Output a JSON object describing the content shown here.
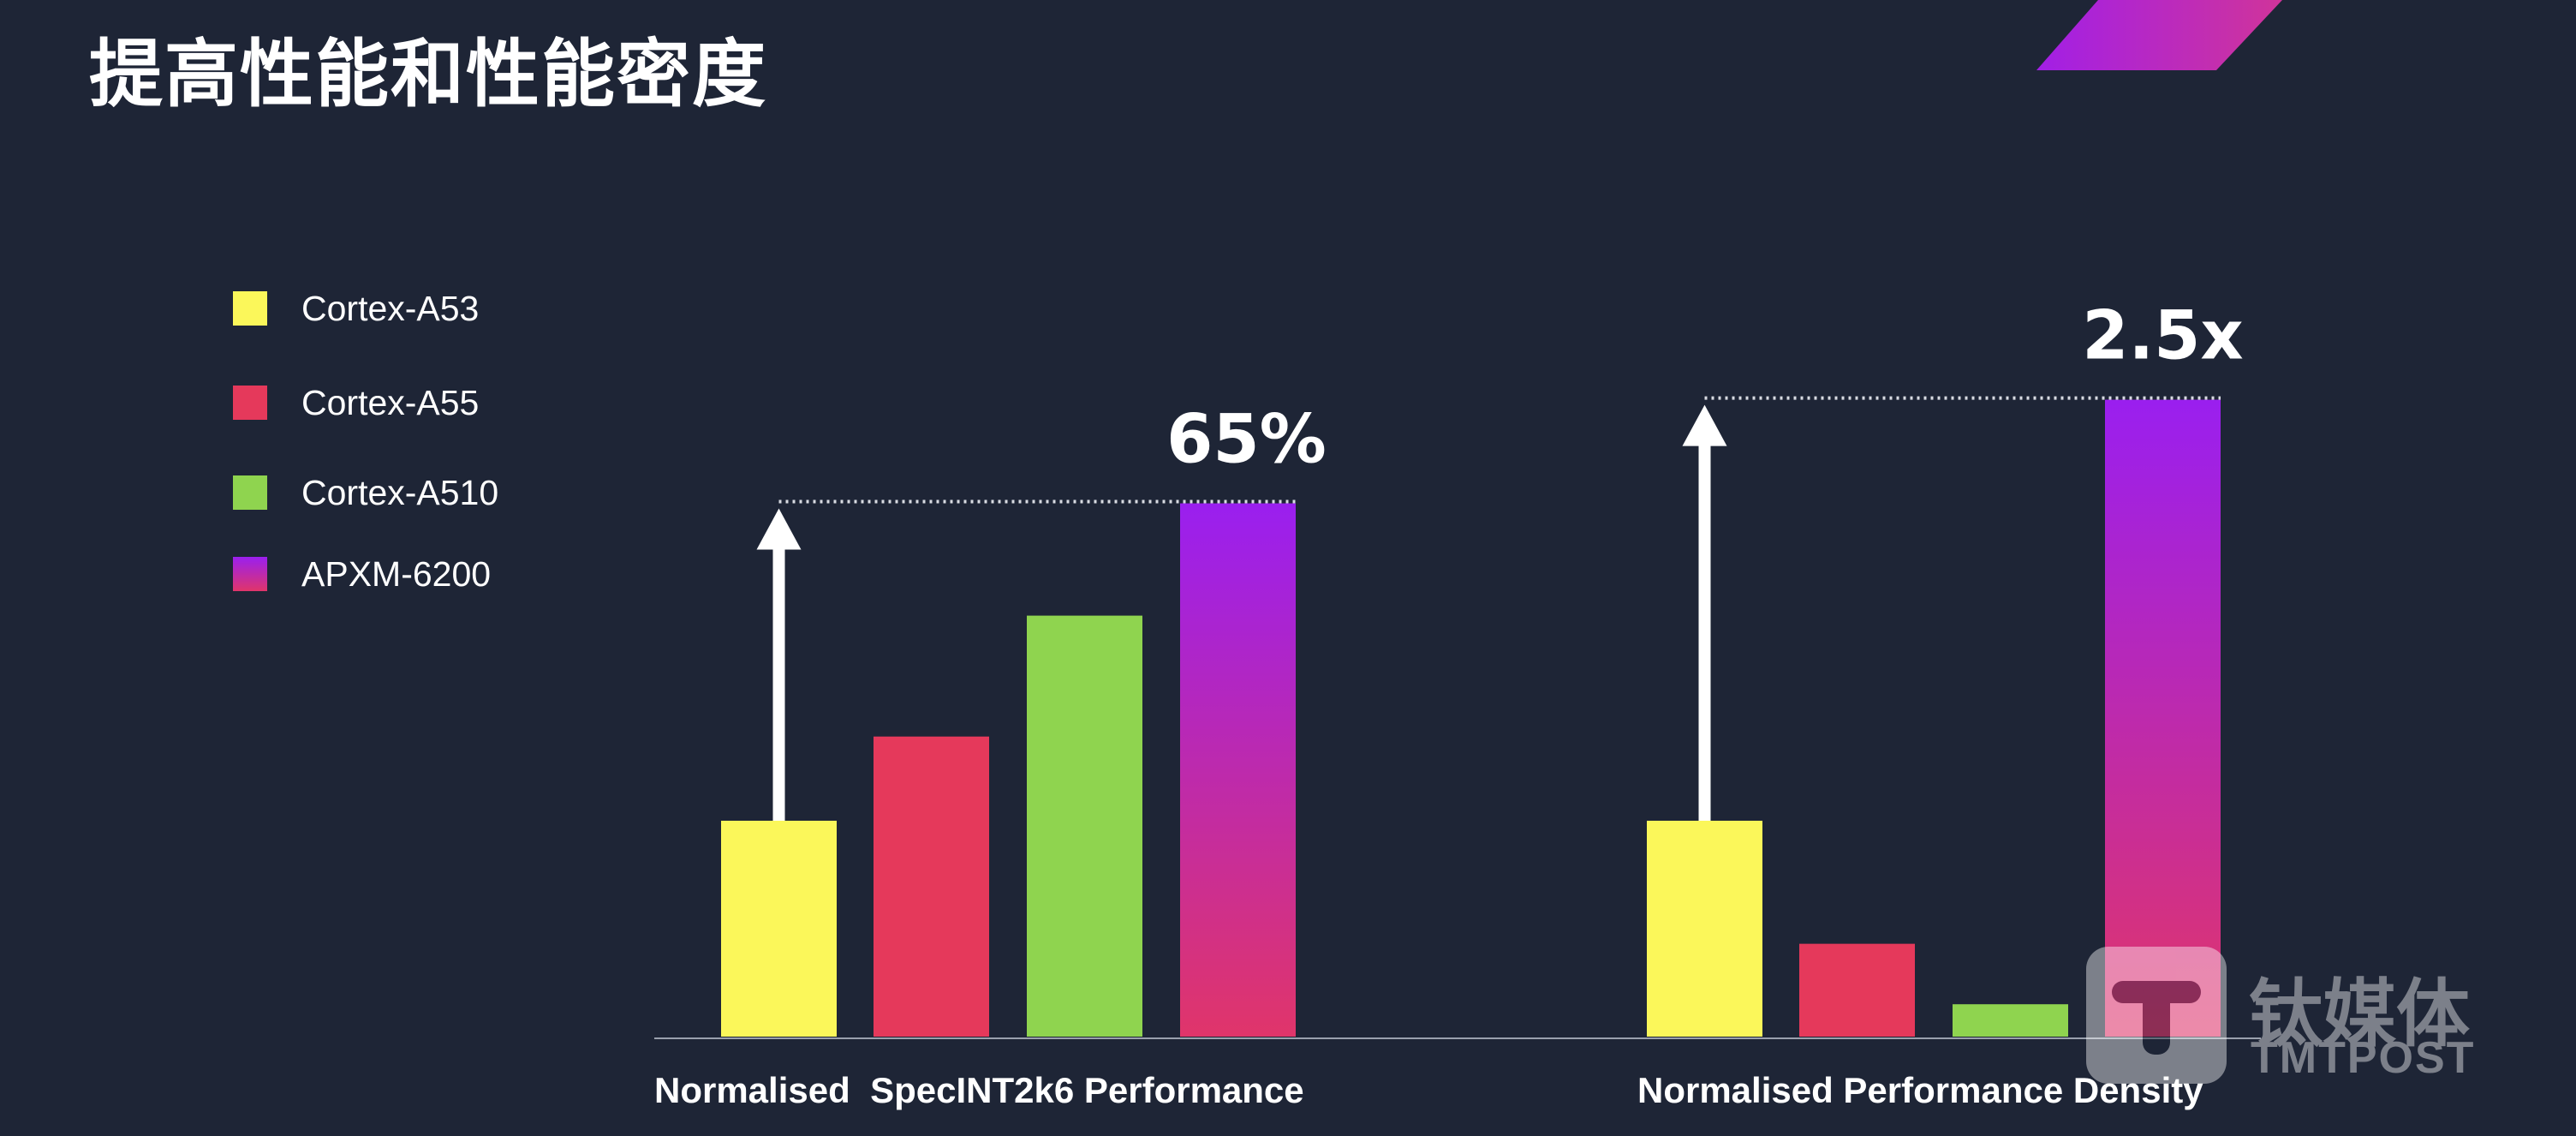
{
  "page": {
    "title": "提高性能和性能密度"
  },
  "legend": [
    {
      "label": "Cortex-A53",
      "color": "#fbf75a"
    },
    {
      "label": "Cortex-A55",
      "color": "#e5395b"
    },
    {
      "label": "Cortex-A510",
      "color": "#8fd44f"
    },
    {
      "label": "APXM-6200",
      "color_top": "#9a1fef",
      "color_bottom": "#e0356a"
    }
  ],
  "colors": {
    "background": "#1e2536",
    "axis": "#9aa0ad",
    "arrow": "#ffffff",
    "dotted_line": "#d8dbe2"
  },
  "chart_data": [
    {
      "type": "bar",
      "xlabel": "Normalised  SpecINT2k6 Performance",
      "series_labels": [
        "Cortex-A53",
        "Cortex-A55",
        "Cortex-A510",
        "APXM-6200"
      ],
      "values": [
        1.0,
        1.39,
        1.95,
        2.47
      ],
      "annotation": "65%",
      "y_axis_shown": false
    },
    {
      "type": "bar",
      "xlabel": "Normalised Performance Density",
      "series_labels": [
        "Cortex-A53",
        "Cortex-A55",
        "Cortex-A510",
        "APXM-6200"
      ],
      "values": [
        1.0,
        0.43,
        0.15,
        2.95
      ],
      "annotation": "2.5x",
      "y_axis_shown": false
    }
  ],
  "watermark": {
    "text_cn": "钛媒体",
    "text_en": "TMTPOST"
  }
}
